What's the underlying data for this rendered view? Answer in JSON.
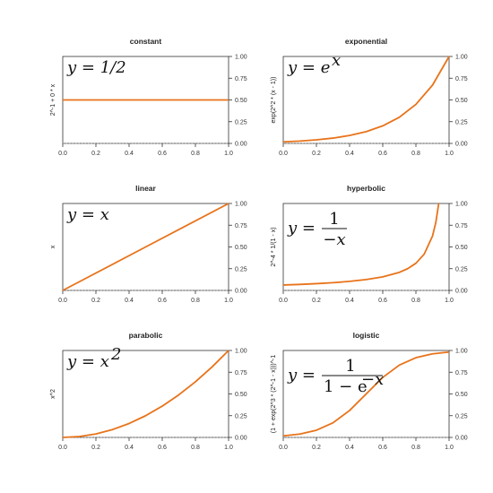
{
  "colors": {
    "curve": "#E8731A",
    "axis": "#333333",
    "zero_line": "#aaaaaa"
  },
  "chart_data": [
    {
      "type": "line",
      "title": "constant",
      "ylabel": "2^-1 + 0 * x",
      "formula": {
        "kind": "plain",
        "text": "y = 1/2"
      },
      "xlim": [
        0,
        1
      ],
      "ylim": [
        0,
        1
      ],
      "x_ticks": [
        "0.0",
        "0.2",
        "0.4",
        "0.6",
        "0.8",
        "1.0"
      ],
      "y_ticks": [
        "0.00",
        "0.25",
        "0.50",
        "0.75",
        "1.00"
      ],
      "series": [
        {
          "x": [
            0,
            0.2,
            0.4,
            0.6,
            0.8,
            1.0
          ],
          "y": [
            0.5,
            0.5,
            0.5,
            0.5,
            0.5,
            0.5
          ]
        }
      ]
    },
    {
      "type": "line",
      "title": "exponential",
      "ylabel": "exp(2^2 * (x - 1))",
      "formula": {
        "kind": "power",
        "base": "y = e",
        "exp": "x"
      },
      "xlim": [
        0,
        1
      ],
      "ylim": [
        0,
        1
      ],
      "x_ticks": [
        "0.0",
        "0.2",
        "0.4",
        "0.6",
        "0.8",
        "1.0"
      ],
      "y_ticks": [
        "0.00",
        "0.25",
        "0.50",
        "0.75",
        "1.00"
      ],
      "series": [
        {
          "x": [
            0,
            0.1,
            0.2,
            0.3,
            0.4,
            0.5,
            0.6,
            0.7,
            0.8,
            0.9,
            1.0
          ],
          "y": [
            0.018,
            0.027,
            0.041,
            0.061,
            0.091,
            0.135,
            0.202,
            0.301,
            0.449,
            0.67,
            1.0
          ]
        }
      ]
    },
    {
      "type": "line",
      "title": "linear",
      "ylabel": "x",
      "formula": {
        "kind": "plain",
        "text": "y = x"
      },
      "xlim": [
        0,
        1
      ],
      "ylim": [
        0,
        1
      ],
      "x_ticks": [
        "0.0",
        "0.2",
        "0.4",
        "0.6",
        "0.8",
        "1.0"
      ],
      "y_ticks": [
        "0.00",
        "0.25",
        "0.50",
        "0.75",
        "1.00"
      ],
      "series": [
        {
          "x": [
            0,
            0.5,
            1.0
          ],
          "y": [
            0,
            0.5,
            1.0
          ]
        }
      ]
    },
    {
      "type": "line",
      "title": "hyperbolic",
      "ylabel": "2^-4 * 1/(1 - x)",
      "formula": {
        "kind": "fraction",
        "lhs": "y =",
        "num": "1",
        "den": "−x"
      },
      "xlim": [
        0,
        1
      ],
      "ylim": [
        0,
        1
      ],
      "x_ticks": [
        "0.0",
        "0.2",
        "0.4",
        "0.6",
        "0.8",
        "1.0"
      ],
      "y_ticks": [
        "0.00",
        "0.25",
        "0.50",
        "0.75",
        "1.00"
      ],
      "series": [
        {
          "x": [
            0,
            0.1,
            0.2,
            0.3,
            0.4,
            0.5,
            0.6,
            0.7,
            0.75,
            0.8,
            0.85,
            0.9,
            0.92,
            0.9375
          ],
          "y": [
            0.0625,
            0.069,
            0.078,
            0.089,
            0.104,
            0.125,
            0.156,
            0.208,
            0.25,
            0.3125,
            0.417,
            0.625,
            0.781,
            1.0
          ]
        }
      ]
    },
    {
      "type": "line",
      "title": "parabolic",
      "ylabel": "x^2",
      "formula": {
        "kind": "power",
        "base": "y = x",
        "exp": "2"
      },
      "xlim": [
        0,
        1
      ],
      "ylim": [
        0,
        1
      ],
      "x_ticks": [
        "0.0",
        "0.2",
        "0.4",
        "0.6",
        "0.8",
        "1.0"
      ],
      "y_ticks": [
        "0.00",
        "0.25",
        "0.50",
        "0.75",
        "1.00"
      ],
      "series": [
        {
          "x": [
            0,
            0.1,
            0.2,
            0.3,
            0.4,
            0.5,
            0.6,
            0.7,
            0.8,
            0.9,
            1.0
          ],
          "y": [
            0,
            0.01,
            0.04,
            0.09,
            0.16,
            0.25,
            0.36,
            0.49,
            0.64,
            0.81,
            1.0
          ]
        }
      ]
    },
    {
      "type": "line",
      "title": "logistic",
      "ylabel": "(1 + exp(2^3 * (2^-1 - x)))^-1",
      "formula": {
        "kind": "fraction-exp",
        "lhs": "y =",
        "num": "1",
        "den": "1 − e",
        "den_exp": "−x"
      },
      "xlim": [
        0,
        1
      ],
      "ylim": [
        0,
        1
      ],
      "x_ticks": [
        "0.0",
        "0.2",
        "0.4",
        "0.6",
        "0.8",
        "1.0"
      ],
      "y_ticks": [
        "0.00",
        "0.25",
        "0.50",
        "0.75",
        "1.00"
      ],
      "series": [
        {
          "x": [
            0,
            0.1,
            0.2,
            0.3,
            0.4,
            0.5,
            0.6,
            0.7,
            0.8,
            0.9,
            1.0
          ],
          "y": [
            0.018,
            0.039,
            0.083,
            0.168,
            0.31,
            0.5,
            0.69,
            0.832,
            0.917,
            0.961,
            0.982
          ]
        }
      ]
    }
  ]
}
